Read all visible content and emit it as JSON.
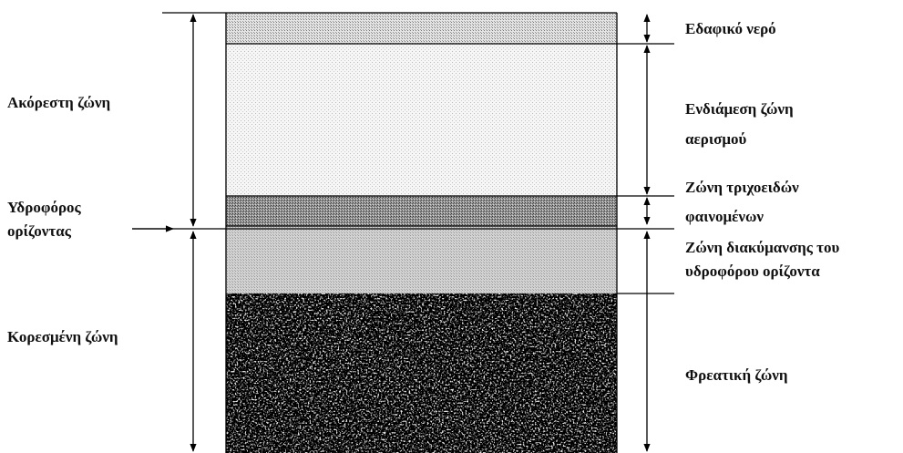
{
  "left_labels": [
    {
      "lines": [
        "Ακόρεστη ζώνη"
      ]
    },
    {
      "lines": [
        "Υδροφόρος",
        "ορίζοντας"
      ]
    },
    {
      "lines": [
        "Κορεσμένη ζώνη"
      ]
    }
  ],
  "right_labels": [
    {
      "lines": [
        "Εδαφικό νερό"
      ]
    },
    {
      "lines": [
        "Ενδιάμεση ζώνη",
        "αερισμού"
      ]
    },
    {
      "lines": [
        "Ζώνη τριχοειδών",
        "φαινομένων"
      ]
    },
    {
      "lines": [
        "Ζώνη διακύμανσης του",
        "υδροφόρου ορίζοντα"
      ]
    },
    {
      "lines": [
        "Φρεατική ζώνη"
      ]
    }
  ]
}
